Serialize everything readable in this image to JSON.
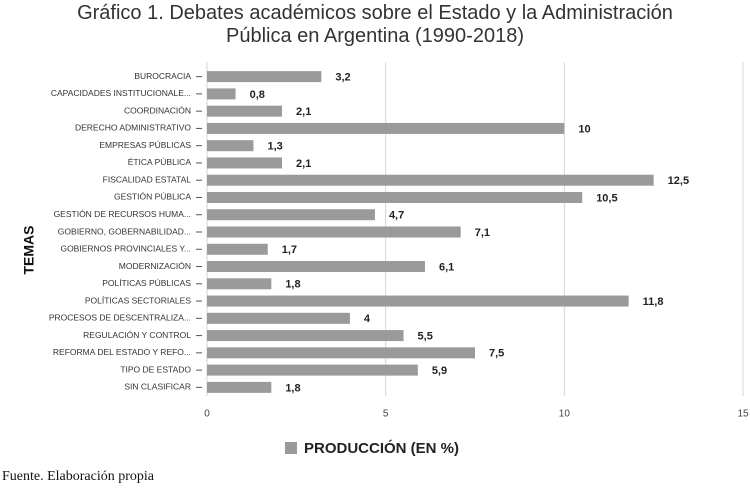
{
  "chart_data": {
    "type": "bar",
    "orientation": "horizontal",
    "title": "Gráfico 1. Debates académicos sobre el Estado y la Administración Pública en Argentina (1990-2018)",
    "y_label": "TEMAS",
    "categories": [
      "BUROCRACIA",
      "CAPACIDADES INSTITUCIONALE...",
      "COORDINACIÓN",
      "DERECHO ADMINISTRATIVO",
      "EMPRESAS PÚBLICAS",
      "ÉTICA PÚBLICA",
      "FISCALIDAD ESTATAL",
      "GESTIÓN PÚBLICA",
      "GESTIÓN DE RECURSOS HUMA...",
      "GOBIERNO, GOBERNABILIDAD...",
      "GOBIERNOS PROVINCIALES Y...",
      "MODERNIZACIÓN",
      "POLÍTICAS PÚBLICAS",
      "POLÍTICAS SECTORIALES",
      "PROCESOS DE DESCENTRALIZA...",
      "REGULACIÓN Y CONTROL",
      "REFORMA DEL ESTADO Y REFO...",
      "TIPO DE ESTADO",
      "SIN CLASIFICAR"
    ],
    "series": [
      {
        "name": "PRODUCCIÓN (EN %)",
        "color": "#9a9a9a",
        "values": [
          3.2,
          0.8,
          2.1,
          10,
          1.3,
          2.1,
          12.5,
          10.5,
          4.7,
          7.1,
          1.7,
          6.1,
          1.8,
          11.8,
          4,
          5.5,
          7.5,
          5.9,
          1.8
        ],
        "value_labels": [
          "3,2",
          "0,8",
          "2,1",
          "10",
          "1,3",
          "2,1",
          "12,5",
          "10,5",
          "4,7",
          "7,1",
          "1,7",
          "6,1",
          "1,8",
          "11,8",
          "4",
          "5,5",
          "7,5",
          "5,9",
          "1,8"
        ]
      }
    ],
    "xlim": [
      0,
      15
    ],
    "xticks": [
      0,
      5,
      10,
      15
    ],
    "grid": true,
    "source": "Fuente. Elaboración propia"
  }
}
